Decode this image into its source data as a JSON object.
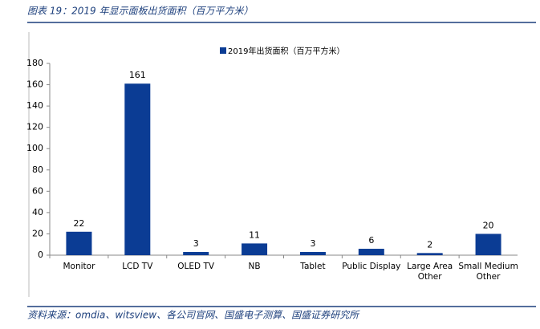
{
  "header": {
    "title": "图表 19：2019 年显示面板出货面积（百万平方米）"
  },
  "chart_data": {
    "type": "bar",
    "categories": [
      "Monitor",
      "LCD TV",
      "OLED TV",
      "NB",
      "Tablet",
      "Public Display",
      "Large Area Other",
      "Small Medium Other"
    ],
    "series": [
      {
        "name": "2019年出货面积（百万平方米）",
        "color": "#0b3c94",
        "values": [
          22,
          161,
          3,
          11,
          3,
          6,
          2,
          20
        ]
      }
    ],
    "ylim": [
      0,
      180
    ],
    "yticks": [
      0,
      20,
      40,
      60,
      80,
      100,
      120,
      140,
      160,
      180
    ],
    "legend": "top",
    "data_labels": true
  },
  "footer": {
    "source": "资料来源：omdia、witsview、各公司官网、国盛电子测算、国盛证券研究所"
  }
}
